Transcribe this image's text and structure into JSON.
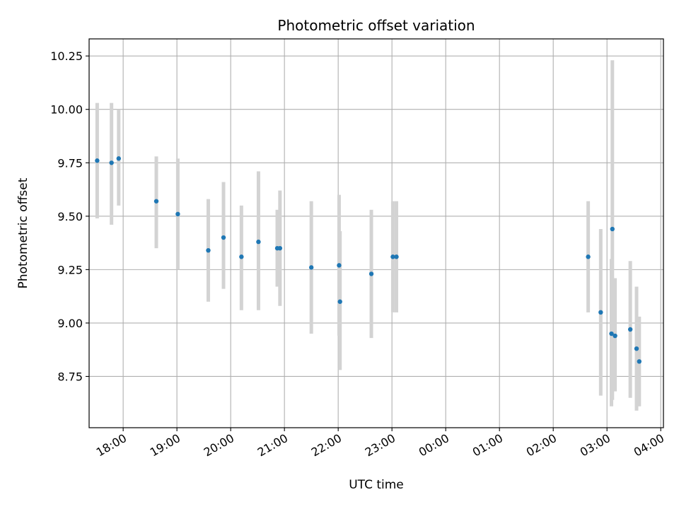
{
  "chart_data": {
    "type": "scatter",
    "title": "Photometric offset variation",
    "xlabel": "UTC time",
    "ylabel": "Photometric offset",
    "x_ticks": [
      "18:00",
      "19:00",
      "20:00",
      "21:00",
      "22:00",
      "23:00",
      "00:00",
      "01:00",
      "02:00",
      "03:00",
      "04:00"
    ],
    "y_ticks": [
      "8.75",
      "9.00",
      "9.25",
      "9.50",
      "9.75",
      "10.00",
      "10.25"
    ],
    "xlim": [
      "17:22",
      "04:03"
    ],
    "ylim": [
      8.51,
      10.33
    ],
    "grid": true,
    "colors": {
      "point": "#1f77b4",
      "errorbar": "#d3d3d3",
      "grid": "#b0b0b0"
    },
    "points": [
      {
        "x": "17:31",
        "y": 9.76,
        "ylow": 9.49,
        "yhigh": 10.03
      },
      {
        "x": "17:47",
        "y": 9.75,
        "ylow": 9.46,
        "yhigh": 10.03
      },
      {
        "x": "17:55",
        "y": 9.77,
        "ylow": 9.55,
        "yhigh": 10.0
      },
      {
        "x": "18:37",
        "y": 9.57,
        "ylow": 9.35,
        "yhigh": 9.78
      },
      {
        "x": "19:01",
        "y": 9.51,
        "ylow": 9.25,
        "yhigh": 9.77
      },
      {
        "x": "19:35",
        "y": 9.34,
        "ylow": 9.1,
        "yhigh": 9.58
      },
      {
        "x": "19:52",
        "y": 9.4,
        "ylow": 9.16,
        "yhigh": 9.66
      },
      {
        "x": "20:12",
        "y": 9.31,
        "ylow": 9.06,
        "yhigh": 9.55
      },
      {
        "x": "20:31",
        "y": 9.38,
        "ylow": 9.06,
        "yhigh": 9.71
      },
      {
        "x": "20:52",
        "y": 9.35,
        "ylow": 9.17,
        "yhigh": 9.53
      },
      {
        "x": "20:55",
        "y": 9.35,
        "ylow": 9.08,
        "yhigh": 9.62
      },
      {
        "x": "21:30",
        "y": 9.26,
        "ylow": 8.95,
        "yhigh": 9.57
      },
      {
        "x": "22:01",
        "y": 9.27,
        "ylow": 8.94,
        "yhigh": 9.6
      },
      {
        "x": "22:02",
        "y": 9.1,
        "ylow": 8.78,
        "yhigh": 9.43
      },
      {
        "x": "22:37",
        "y": 9.23,
        "ylow": 8.93,
        "yhigh": 9.53
      },
      {
        "x": "23:01",
        "y": 9.31,
        "ylow": 9.05,
        "yhigh": 9.57
      },
      {
        "x": "23:05",
        "y": 9.31,
        "ylow": 9.05,
        "yhigh": 9.57
      },
      {
        "x": "02:39",
        "y": 9.31,
        "ylow": 9.05,
        "yhigh": 9.57
      },
      {
        "x": "02:53",
        "y": 9.05,
        "ylow": 8.66,
        "yhigh": 9.44
      },
      {
        "x": "03:05",
        "y": 8.95,
        "ylow": 8.61,
        "yhigh": 9.3
      },
      {
        "x": "03:06",
        "y": 9.44,
        "ylow": 8.64,
        "yhigh": 10.23
      },
      {
        "x": "03:09",
        "y": 8.94,
        "ylow": 8.68,
        "yhigh": 9.21
      },
      {
        "x": "03:26",
        "y": 8.97,
        "ylow": 8.65,
        "yhigh": 9.29
      },
      {
        "x": "03:33",
        "y": 8.88,
        "ylow": 8.59,
        "yhigh": 9.17
      },
      {
        "x": "03:36",
        "y": 8.82,
        "ylow": 8.61,
        "yhigh": 9.03
      }
    ]
  }
}
